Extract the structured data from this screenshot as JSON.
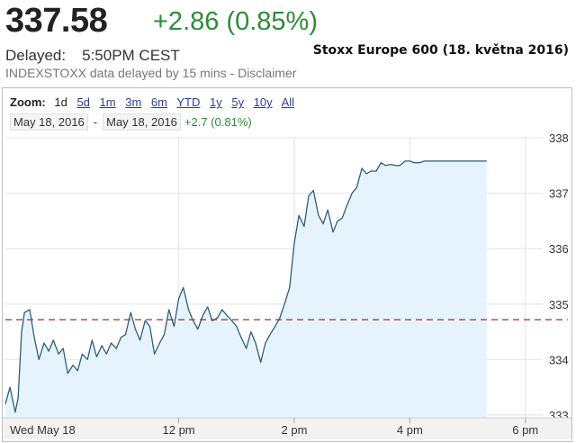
{
  "quote": {
    "price": "337.58",
    "change": "+2.86 (0.85%)",
    "delayed_label": "Delayed:",
    "time": "5:50PM CEST",
    "note": "INDEXSTOXX data delayed by 15 mins - Disclaimer",
    "caption": "Stoxx Europe 600 (18. května 2016)"
  },
  "zoom": {
    "label": "Zoom:",
    "options": [
      "1d",
      "5d",
      "1m",
      "3m",
      "6m",
      "YTD",
      "1y",
      "5y",
      "10y",
      "All"
    ],
    "selected": "1d"
  },
  "range": {
    "from": "May 18, 2016",
    "to": "May 18, 2016",
    "change": "+2.7 (0.81%)"
  },
  "colors": {
    "accent_green": "#2e8b3a",
    "line": "#2f5f7a",
    "fill": "#e6f3fc",
    "reference": "#a0302a"
  },
  "chart_data": {
    "type": "area",
    "x_axis": {
      "tick_labels": [
        "Wed May 18",
        "12 pm",
        "2 pm",
        "4 pm",
        "6 pm"
      ],
      "tick_hours": [
        9,
        12,
        14,
        16,
        18
      ],
      "range_hours": [
        9,
        18.3
      ]
    },
    "y_axis": {
      "ticks": [
        333,
        334,
        335,
        336,
        337,
        338
      ],
      "range": [
        332.95,
        338.0
      ],
      "side": "right"
    },
    "reference_line": 334.72,
    "series": [
      {
        "x": [
          9.0,
          9.08,
          9.17,
          9.22,
          9.28,
          9.33,
          9.42,
          9.5,
          9.58,
          9.67,
          9.75,
          9.83,
          9.92,
          10.0,
          10.08,
          10.17,
          10.25,
          10.33,
          10.42,
          10.5,
          10.58,
          10.67,
          10.75,
          10.83,
          10.92,
          11.0,
          11.08,
          11.17,
          11.25,
          11.33,
          11.42,
          11.5,
          11.58,
          11.67,
          11.75,
          11.83,
          11.92,
          12.0,
          12.08,
          12.17,
          12.25,
          12.33,
          12.42,
          12.5,
          12.58,
          12.67,
          12.75,
          12.83,
          12.92,
          13.0,
          13.08,
          13.17,
          13.25,
          13.33,
          13.42,
          13.5,
          13.58,
          13.67,
          13.75,
          13.83,
          13.92,
          14.0,
          14.08,
          14.17,
          14.25,
          14.33,
          14.42,
          14.5,
          14.58,
          14.67,
          14.75,
          14.83,
          14.92,
          15.0,
          15.08,
          15.17,
          15.25,
          15.33,
          15.42,
          15.5,
          15.58,
          15.67,
          15.75,
          15.83,
          15.92,
          16.0,
          16.08,
          16.17,
          16.25,
          16.33,
          16.42,
          16.5,
          16.58,
          16.67,
          16.75,
          16.83,
          16.92,
          17.0,
          17.08,
          17.17,
          17.25,
          17.33
        ],
        "y": [
          333.2,
          333.5,
          333.05,
          333.3,
          334.5,
          334.85,
          334.9,
          334.4,
          334.0,
          334.3,
          334.15,
          334.35,
          334.1,
          334.2,
          333.75,
          333.9,
          333.8,
          334.1,
          334.0,
          334.35,
          334.05,
          334.25,
          334.1,
          334.3,
          334.2,
          334.4,
          334.45,
          334.85,
          334.55,
          334.35,
          334.7,
          334.6,
          334.1,
          334.3,
          334.45,
          334.9,
          334.6,
          335.1,
          335.3,
          334.9,
          334.7,
          334.55,
          334.8,
          334.95,
          334.7,
          334.75,
          334.9,
          334.8,
          334.7,
          334.6,
          334.4,
          334.2,
          334.5,
          334.3,
          333.95,
          334.3,
          334.45,
          334.6,
          334.75,
          335.0,
          335.3,
          336.1,
          336.6,
          336.4,
          336.95,
          337.05,
          336.6,
          336.45,
          336.7,
          336.3,
          336.5,
          336.55,
          336.8,
          337.0,
          337.1,
          337.45,
          337.35,
          337.4,
          337.4,
          337.55,
          337.5,
          337.52,
          337.5,
          337.5,
          337.58,
          337.58,
          337.55,
          337.55,
          337.58,
          337.58,
          337.58,
          337.58,
          337.58,
          337.58,
          337.58,
          337.58,
          337.58,
          337.58,
          337.58,
          337.58,
          337.58,
          337.58
        ]
      }
    ]
  }
}
